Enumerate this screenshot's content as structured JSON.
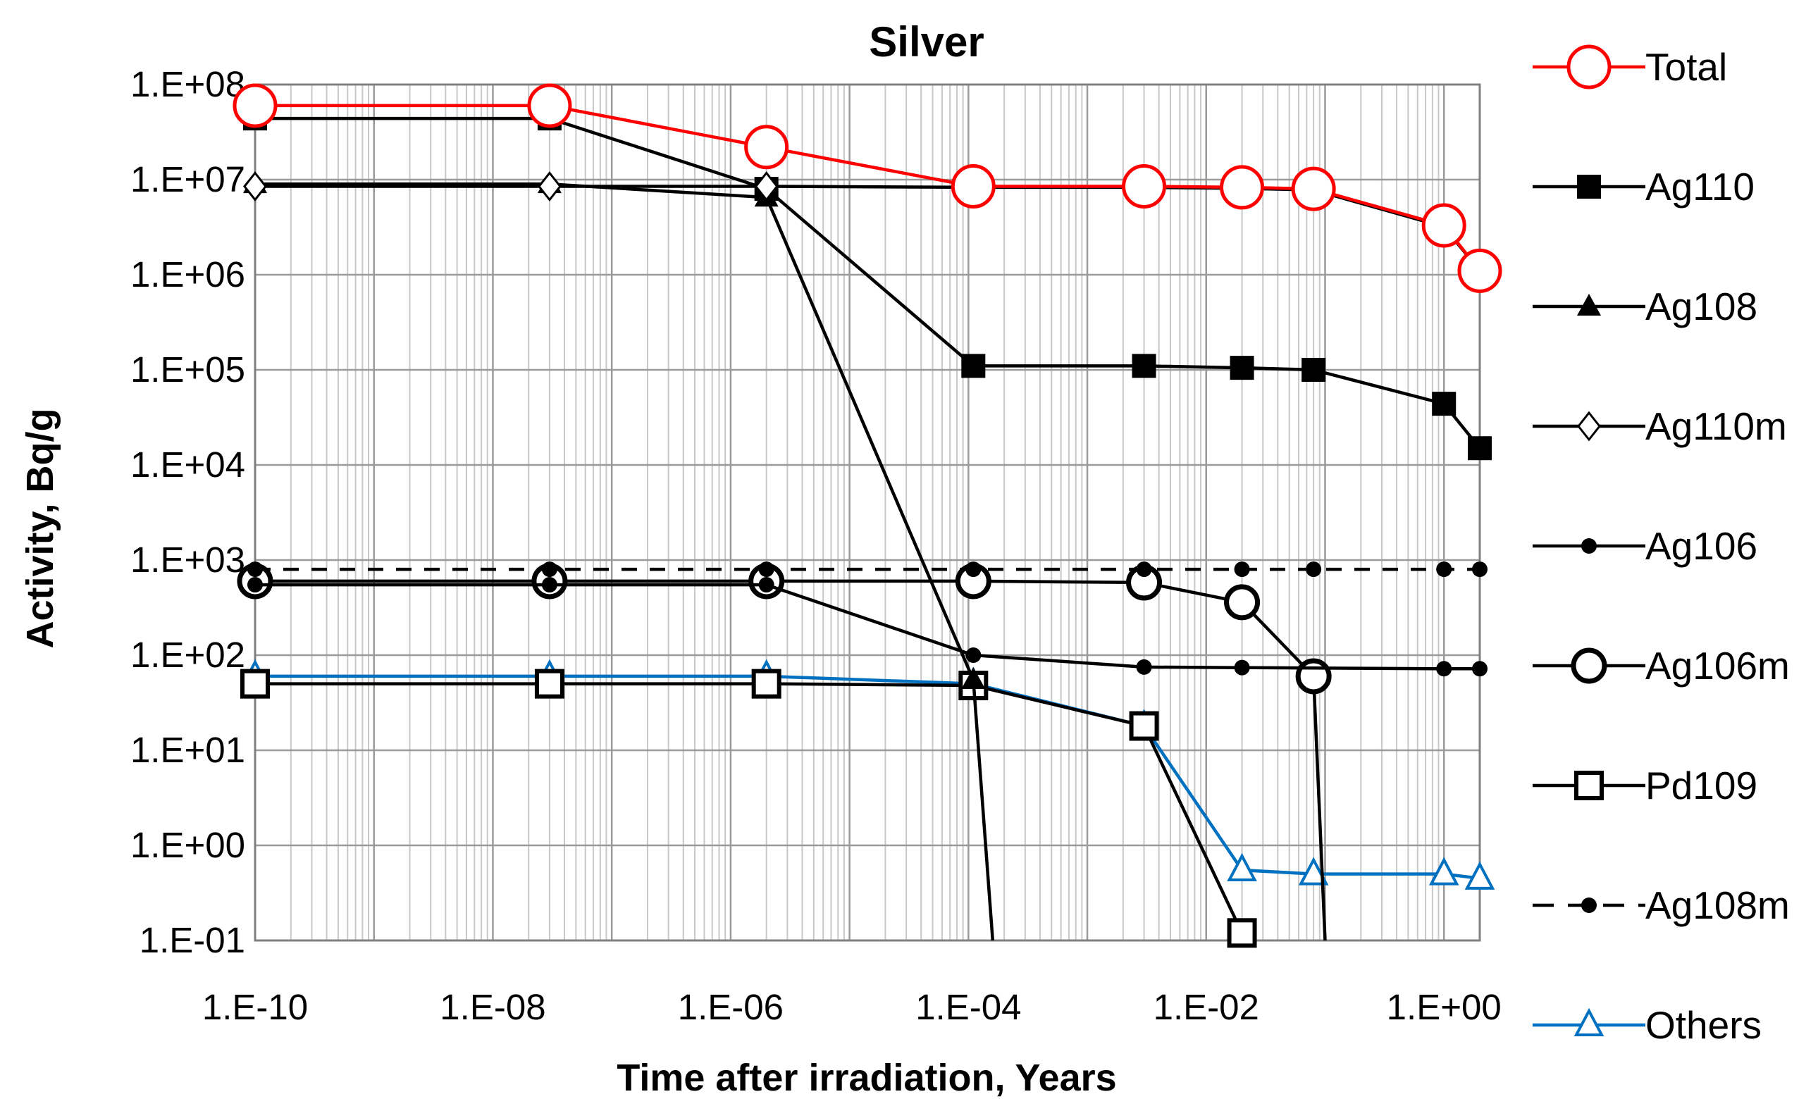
{
  "chart_data": {
    "type": "line",
    "title": "Silver",
    "xlabel": "Time after irradiation, Years",
    "ylabel": "Activity, Bq/g",
    "xscale": "log",
    "yscale": "log",
    "xlim": [
      1e-10,
      2
    ],
    "ylim": [
      0.1,
      100000000
    ],
    "x_ticks": [
      "1.E-10",
      "1.E-08",
      "1.E-06",
      "1.E-04",
      "1.E-02",
      "1.E+00"
    ],
    "y_ticks": [
      "1.E-01",
      "1.E+00",
      "1.E+01",
      "1.E+02",
      "1.E+03",
      "1.E+04",
      "1.E+05",
      "1.E+06",
      "1.E+07",
      "1.E+08"
    ],
    "grid": true,
    "legend_position": "right",
    "series": [
      {
        "name": "Total",
        "color": "#ff0000",
        "marker": "open-circle",
        "dash": "solid",
        "x": [
          1e-10,
          3e-08,
          2e-06,
          0.00011,
          0.003,
          0.02,
          0.08,
          1.0,
          2.0
        ],
        "y": [
          60000000,
          60000000,
          22000000,
          8500000,
          8500000,
          8300000,
          8000000,
          3300000,
          1100000
        ]
      },
      {
        "name": "Ag110",
        "color": "#000000",
        "marker": "filled-square",
        "dash": "solid",
        "x": [
          1e-10,
          3e-08,
          2e-06,
          0.00011,
          0.003,
          0.02,
          0.08,
          1.0,
          2.0
        ],
        "y": [
          44000000,
          44000000,
          8000000,
          110000,
          110000,
          105000,
          100000,
          44000,
          15000
        ]
      },
      {
        "name": "Ag108",
        "color": "#000000",
        "marker": "filled-triangle",
        "dash": "solid",
        "x": [
          1e-10,
          3e-08,
          2e-06,
          0.00011,
          0.00016
        ],
        "y": [
          9000000,
          9000000,
          6500000,
          55,
          0.1
        ]
      },
      {
        "name": "Ag110m",
        "color": "#000000",
        "marker": "open-diamond",
        "dash": "solid",
        "x": [
          1e-10,
          3e-08,
          2e-06,
          0.00011,
          0.003,
          0.02,
          0.08,
          1.0,
          2.0
        ],
        "y": [
          8500000,
          8500000,
          8500000,
          8300000,
          8300000,
          8100000,
          7800000,
          3200000,
          1100000
        ]
      },
      {
        "name": "Ag106",
        "color": "#000000",
        "marker": "filled-dot",
        "dash": "solid",
        "x": [
          1e-10,
          3e-08,
          2e-06,
          0.00011,
          0.003,
          0.02,
          1.0,
          2.0
        ],
        "y": [
          550,
          550,
          550,
          100,
          75,
          74,
          72,
          72
        ]
      },
      {
        "name": "Ag106m",
        "color": "#000000",
        "marker": "open-circle",
        "dash": "solid",
        "x": [
          1e-10,
          3e-08,
          2e-06,
          0.00011,
          0.003,
          0.02,
          0.08,
          0.1
        ],
        "y": [
          600,
          600,
          600,
          600,
          580,
          360,
          60,
          0.1
        ]
      },
      {
        "name": "Pd109",
        "color": "#000000",
        "marker": "open-square",
        "dash": "solid",
        "x": [
          1e-10,
          3e-08,
          2e-06,
          0.00011,
          0.003,
          0.02
        ],
        "y": [
          50,
          50,
          50,
          48,
          18,
          0.12
        ]
      },
      {
        "name": "Ag108m",
        "color": "#000000",
        "marker": "filled-dot",
        "dash": "dashed",
        "x": [
          1e-10,
          3e-08,
          2e-06,
          0.00011,
          0.003,
          0.02,
          0.08,
          1.0,
          2.0
        ],
        "y": [
          800,
          800,
          800,
          800,
          800,
          800,
          800,
          800,
          800
        ]
      },
      {
        "name": "Others",
        "color": "#0070c0",
        "marker": "open-triangle",
        "dash": "solid",
        "x": [
          1e-10,
          3e-08,
          2e-06,
          0.00011,
          0.003,
          0.02,
          0.08,
          1.0,
          2.0
        ],
        "y": [
          60,
          60,
          60,
          50,
          18,
          0.55,
          0.5,
          0.5,
          0.45
        ]
      }
    ]
  }
}
